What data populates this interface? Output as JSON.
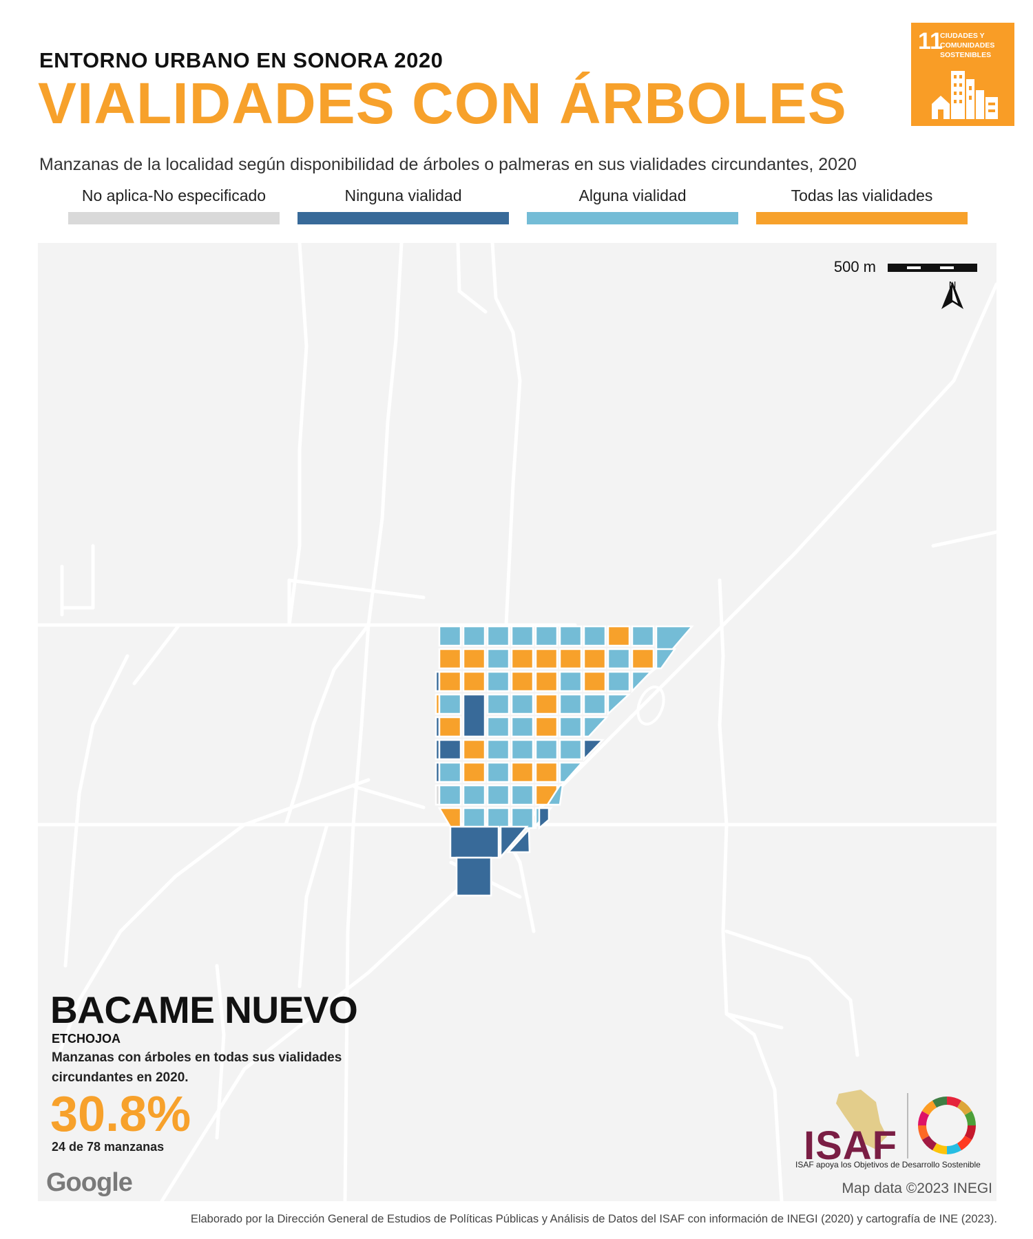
{
  "header": {
    "supertitle": "ENTORNO URBANO EN SONORA 2020",
    "title": "VIALIDADES CON ÁRBOLES",
    "subtitle": "Manzanas de la localidad según disponibilidad de árboles o palmeras en sus vialidades circundantes, 2020"
  },
  "sdg": {
    "number": "11",
    "text": "CIUDADES Y COMUNIDADES SOSTENIBLES",
    "color": "#F99D26"
  },
  "legend": [
    {
      "label": "No aplica-No especificado",
      "color": "#D9D9D9"
    },
    {
      "label": "Ninguna vialidad",
      "color": "#386A99"
    },
    {
      "label": "Alguna vialidad",
      "color": "#74BCD6"
    },
    {
      "label": "Todas las vialidades",
      "color": "#F7A12B"
    }
  ],
  "map": {
    "scale_label": "500 m",
    "north_label": "N",
    "place_name": "BACAME NUEVO",
    "municipality": "ETCHOJOA",
    "kpi_description": "Manzanas con árboles en todas sus vialidades circundantes en 2020.",
    "kpi_value": "30.8%",
    "kpi_count": "24 de 78 manzanas",
    "google_label": "Google",
    "map_data_label": "Map data ©2023 INEGI"
  },
  "footer": {
    "isaf_name": "ISAF",
    "isaf_tagline": "ISAF apoya los Objetivos de Desarrollo Sostenible",
    "credit": "Elaborado por la Dirección General de Estudios de Políticas Públicas y Análisis de Datos del ISAF con información de INEGI (2020) y cartografía de INE (2023)."
  }
}
